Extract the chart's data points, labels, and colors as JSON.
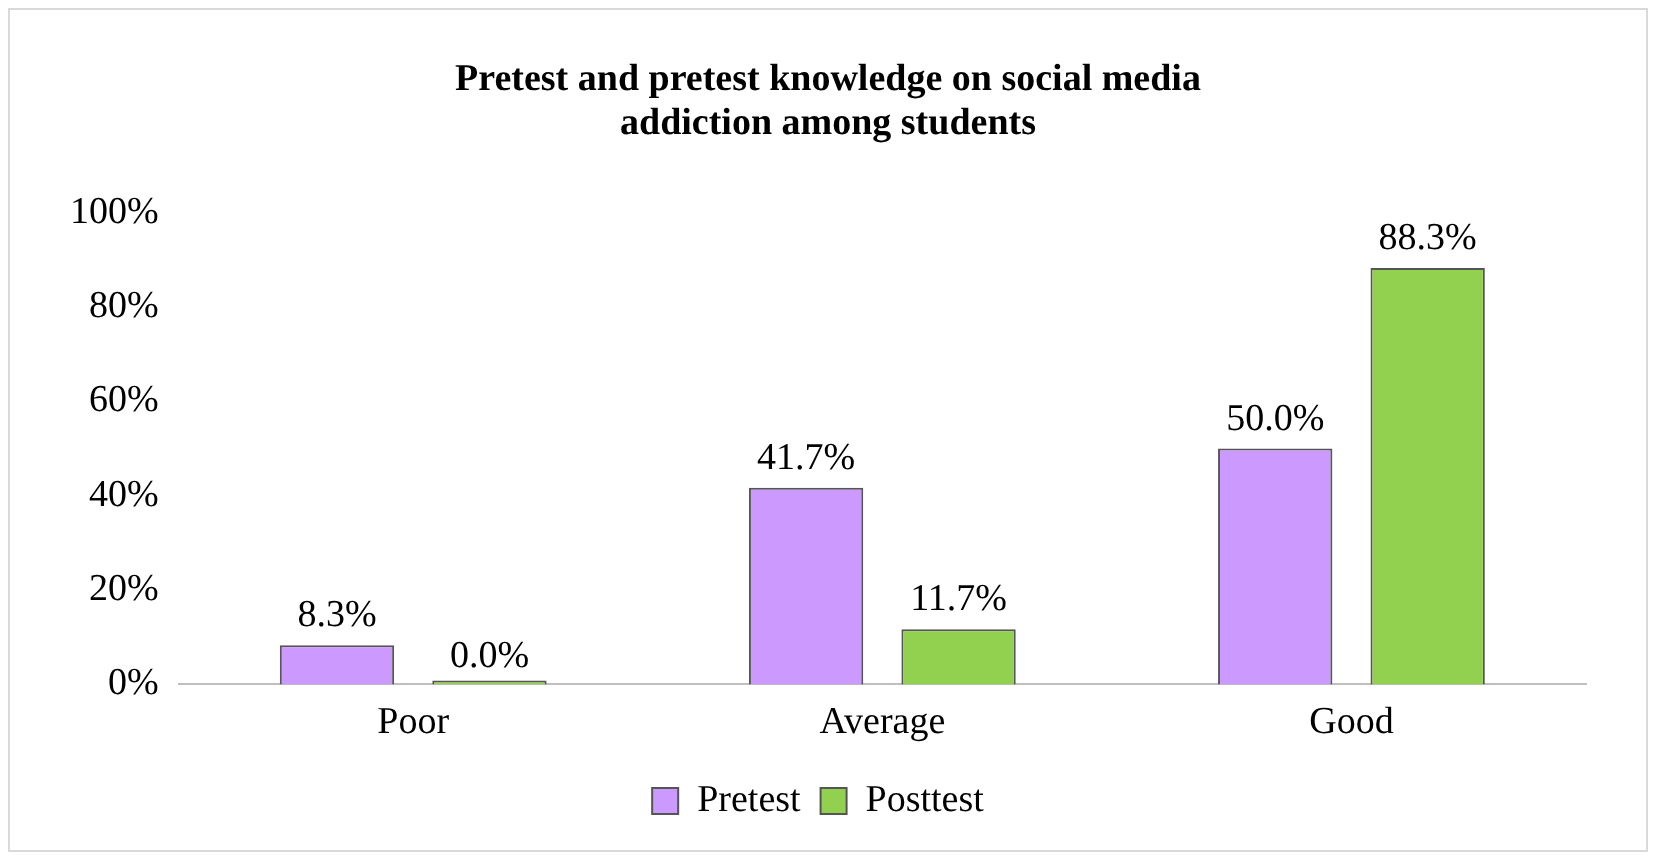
{
  "chart_data": {
    "type": "bar",
    "title": "Pretest and pretest knowledge on social media addiction among students",
    "categories": [
      "Poor",
      "Average",
      "Good"
    ],
    "series": [
      {
        "name": "Pretest",
        "color": "#cc99ff",
        "values": [
          8.3,
          41.7,
          50.0
        ],
        "value_labels": [
          "8.3%",
          "41.7%",
          "50.0%"
        ]
      },
      {
        "name": "Posttest",
        "color": "#92d050",
        "values": [
          0.0,
          11.7,
          88.3
        ],
        "value_labels": [
          "0.0%",
          "11.7%",
          "88.3%"
        ]
      }
    ],
    "ylim": [
      0,
      100
    ],
    "yticks": [
      {
        "value": 0,
        "label": "0%"
      },
      {
        "value": 20,
        "label": "20%"
      },
      {
        "value": 40,
        "label": "40%"
      },
      {
        "value": 60,
        "label": "60%"
      },
      {
        "value": 80,
        "label": "80%"
      },
      {
        "value": 100,
        "label": "100%"
      }
    ],
    "grid": false,
    "legend": "bottom"
  }
}
